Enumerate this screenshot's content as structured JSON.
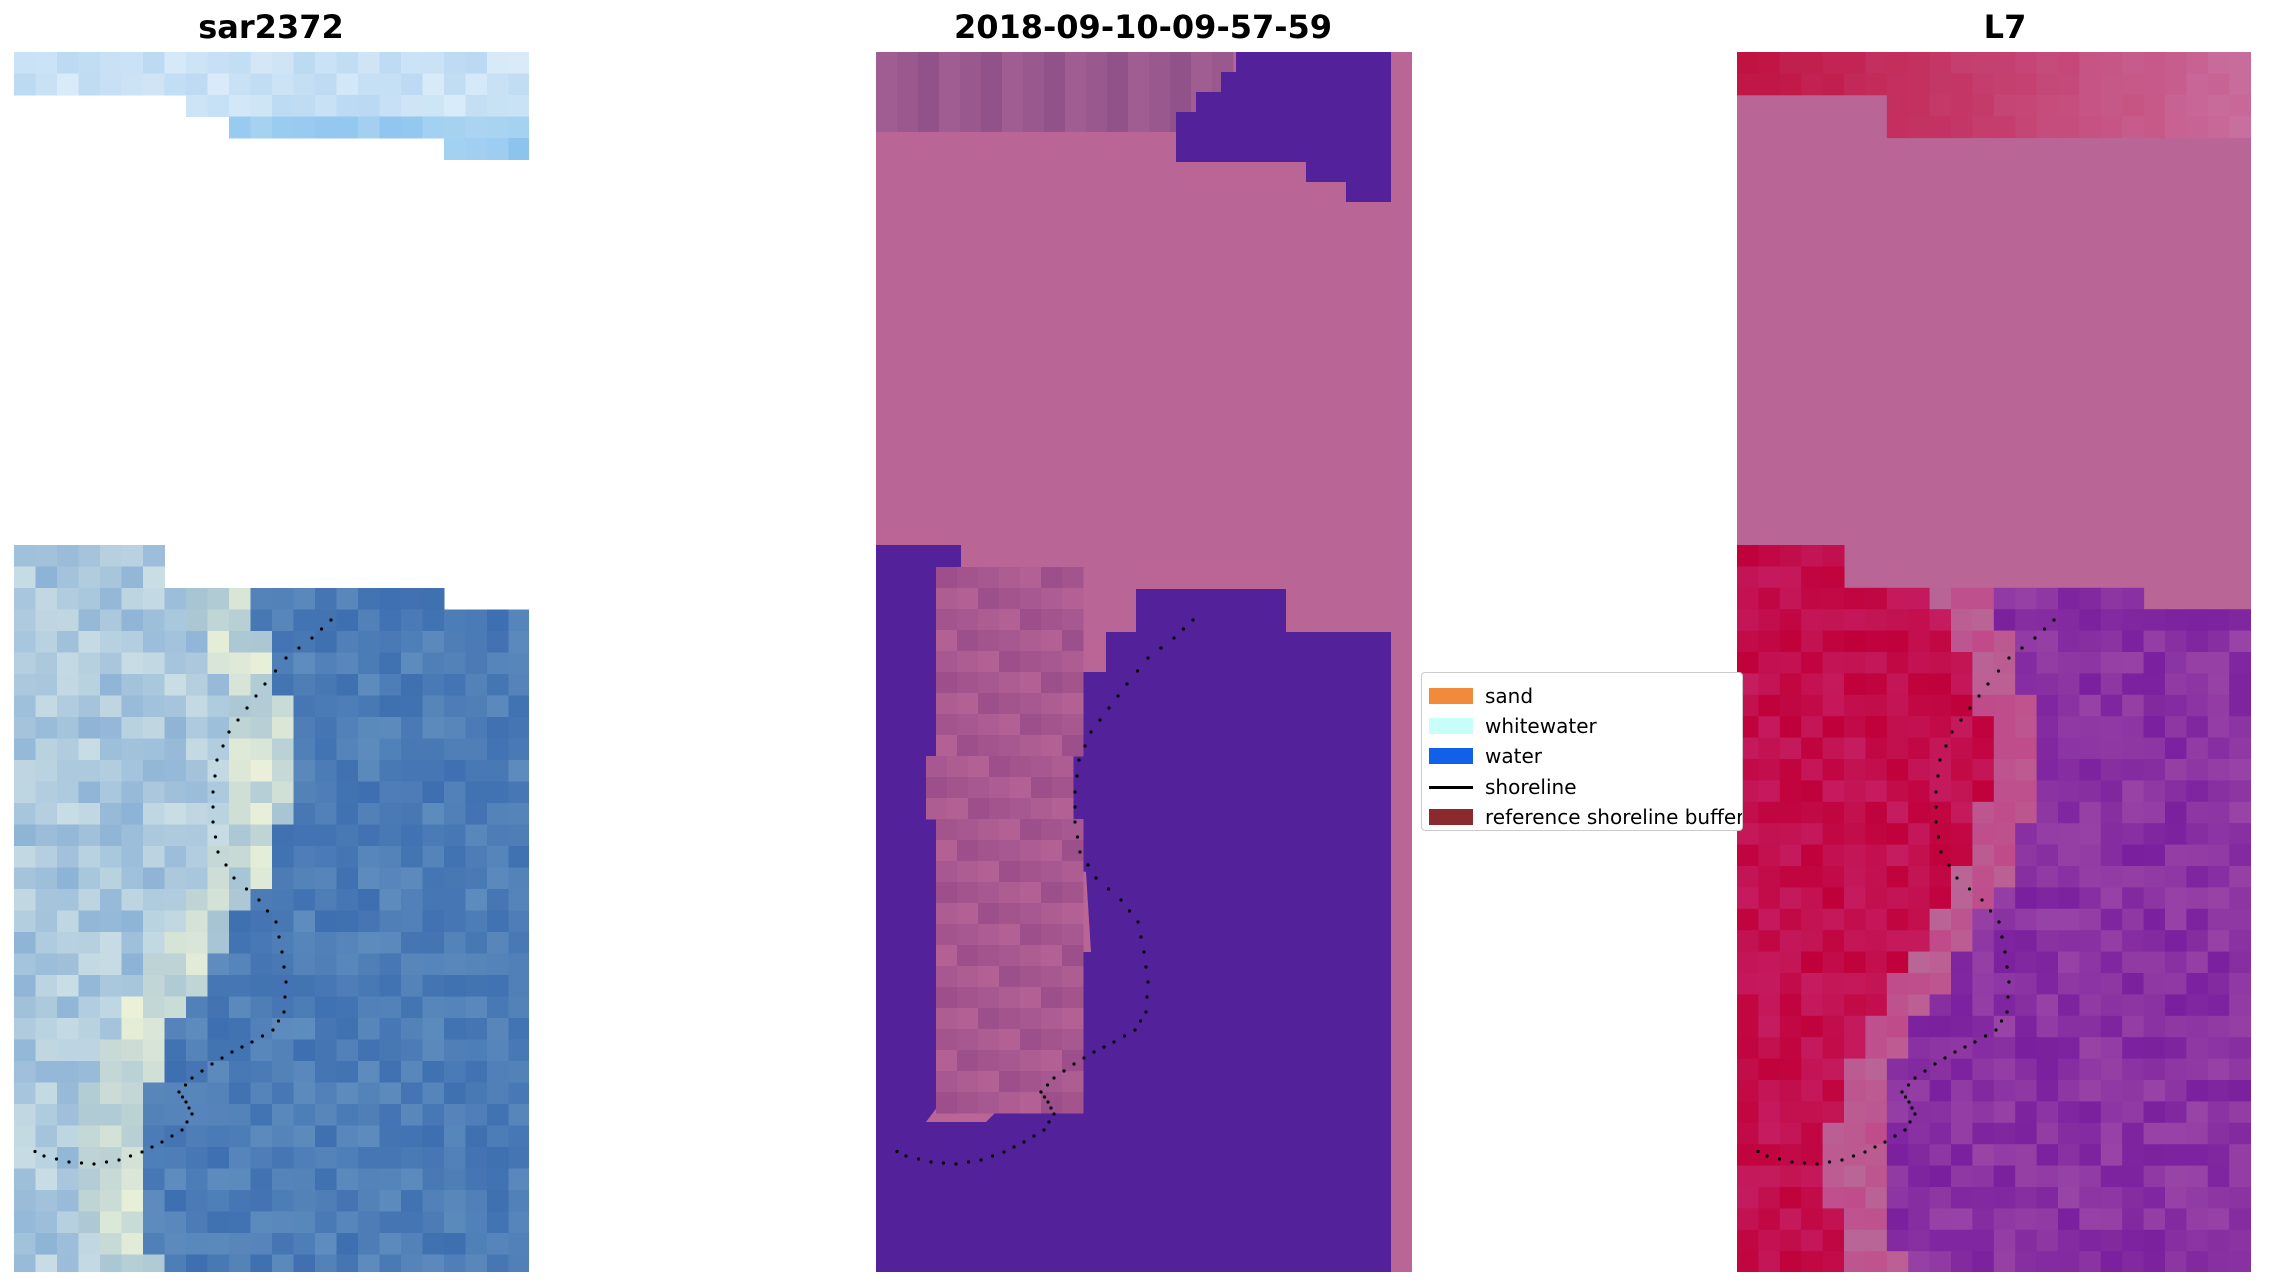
{
  "panels": [
    {
      "title": "sar2372"
    },
    {
      "title": "2018-09-10-09-57-59"
    },
    {
      "title": "L7"
    }
  ],
  "legend": {
    "items": [
      {
        "label": "sand",
        "color": "#f28a3c",
        "kind": "patch"
      },
      {
        "label": "whitewater",
        "color": "#c8fffb",
        "kind": "patch"
      },
      {
        "label": "water",
        "color": "#1060e8",
        "kind": "patch"
      },
      {
        "label": "shoreline",
        "color": "#000000",
        "kind": "line"
      },
      {
        "label": "reference shoreline buffer",
        "color": "#8b2a2e",
        "kind": "patch"
      }
    ]
  },
  "colors": {
    "rgb_water": "#4a7bb8",
    "rgb_sky": "#9cc8ec",
    "class_water": "#53219a",
    "class_background": "#b96697",
    "mndwi_land": "#c0003a",
    "mndwi_water": "#7a1f9e"
  }
}
